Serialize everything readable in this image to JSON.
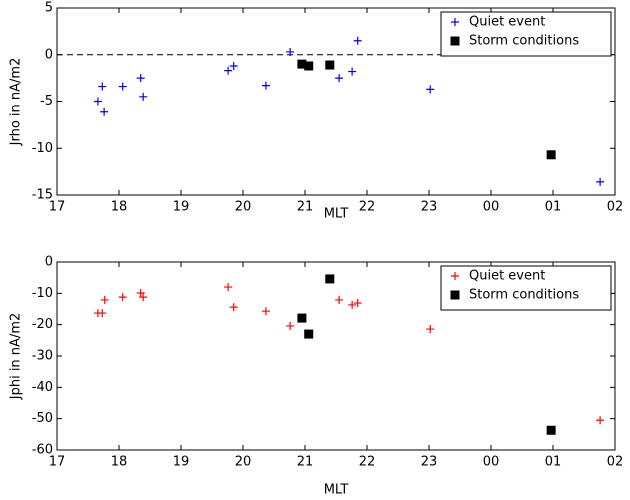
{
  "chart_data": [
    {
      "type": "scatter",
      "xlabel": "MLT",
      "ylabel": "Jrho in nA/m2",
      "xlim": [
        17,
        26
      ],
      "xticks": [
        17,
        18,
        19,
        20,
        21,
        22,
        23,
        {
          "value": 24,
          "label": "00"
        },
        {
          "value": 25,
          "label": "01"
        },
        {
          "value": 26,
          "label": "02"
        }
      ],
      "ylim": [
        -15,
        5
      ],
      "yticks": [
        -15,
        -10,
        -5,
        0,
        5
      ],
      "grid": false,
      "hline": 0,
      "legend": "upper right",
      "series": [
        {
          "name": "Quiet event",
          "color": "#0000ff",
          "marker": "plus",
          "x": [
            17.66,
            17.73,
            17.76,
            18.06,
            18.35,
            18.39,
            19.76,
            19.85,
            20.37,
            20.76,
            21.55,
            21.76,
            21.85,
            23.02,
            25.76
          ],
          "values": [
            -5.0,
            -3.4,
            -6.1,
            -3.4,
            -2.5,
            -4.5,
            -1.7,
            -1.2,
            -3.3,
            0.3,
            -2.5,
            -1.8,
            1.5,
            -3.7,
            -13.6
          ]
        },
        {
          "name": "Storm conditions",
          "color": "#000000",
          "marker": "square",
          "x": [
            20.95,
            21.06,
            21.4,
            24.97
          ],
          "values": [
            -1.0,
            -1.2,
            -1.1,
            -10.7
          ]
        }
      ]
    },
    {
      "type": "scatter",
      "xlabel": "MLT",
      "ylabel": "Jphi in nA/m2",
      "xlim": [
        17,
        26
      ],
      "xticks": [
        17,
        18,
        19,
        20,
        21,
        22,
        23,
        {
          "value": 24,
          "label": "00"
        },
        {
          "value": 25,
          "label": "01"
        },
        {
          "value": 26,
          "label": "02"
        }
      ],
      "ylim": [
        -60,
        0
      ],
      "yticks": [
        -60,
        -50,
        -40,
        -30,
        -20,
        -10,
        0
      ],
      "grid": false,
      "legend": "upper right",
      "series": [
        {
          "name": "Quiet event",
          "color": "#ff0000",
          "marker": "plus",
          "x": [
            17.66,
            17.73,
            17.77,
            18.06,
            18.35,
            18.39,
            19.76,
            19.85,
            20.37,
            20.76,
            21.55,
            21.76,
            21.85,
            23.02,
            25.76
          ],
          "values": [
            -16.3,
            -16.3,
            -12.1,
            -11.2,
            -9.9,
            -11.2,
            -8,
            -14.4,
            -15.7,
            -20.4,
            -12.1,
            -13.7,
            -13.1,
            -21.4,
            -50.5
          ]
        },
        {
          "name": "Storm conditions",
          "color": "#000000",
          "marker": "square",
          "x": [
            20.95,
            21.06,
            21.4,
            24.97
          ],
          "values": [
            -17.9,
            -23,
            -5.4,
            -53.7
          ]
        }
      ]
    }
  ]
}
